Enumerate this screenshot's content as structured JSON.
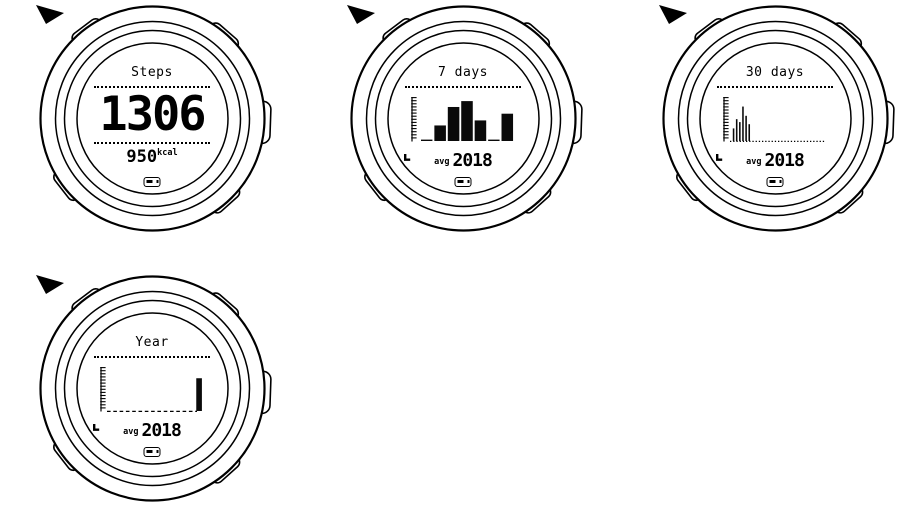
{
  "colors": {
    "ink": "#000000",
    "background": "#ffffff"
  },
  "watches": [
    {
      "name": "steps-today",
      "title": "Steps",
      "value": "1306",
      "kcal_value": "950",
      "kcal_unit": "kcal"
    },
    {
      "name": "steps-7-days",
      "title": "7 days",
      "avg_label": "avg",
      "avg_value": "2018",
      "chart": {
        "type": "bar",
        "slots": 7,
        "values_pct": [
          0,
          37,
          81,
          95,
          49,
          0,
          65
        ],
        "bar_fill_ratio": 0.86,
        "show_zero_baseline": true,
        "baseline": "none"
      }
    },
    {
      "name": "steps-30-days",
      "title": "30 days",
      "avg_label": "avg",
      "avg_value": "2018",
      "chart": {
        "type": "bar",
        "slots": 30,
        "values_pct": [
          30,
          52,
          45,
          82,
          60,
          40,
          0,
          0,
          0,
          0,
          0,
          0,
          0,
          0,
          0,
          0,
          0,
          0,
          0,
          0,
          0,
          0,
          0,
          0,
          0,
          0,
          0,
          0,
          0,
          0
        ],
        "bar_fill_ratio": 0.5,
        "show_zero_baseline": false,
        "baseline": "dotted"
      }
    },
    {
      "name": "steps-year",
      "title": "Year",
      "avg_label": "avg",
      "avg_value": "2018",
      "chart": {
        "type": "bar",
        "slots": 12,
        "values_pct": [
          0,
          0,
          0,
          0,
          0,
          0,
          0,
          0,
          0,
          0,
          0,
          78
        ],
        "bar_fill_ratio": 0.72,
        "show_zero_baseline": false,
        "baseline": "dashed"
      }
    }
  ]
}
